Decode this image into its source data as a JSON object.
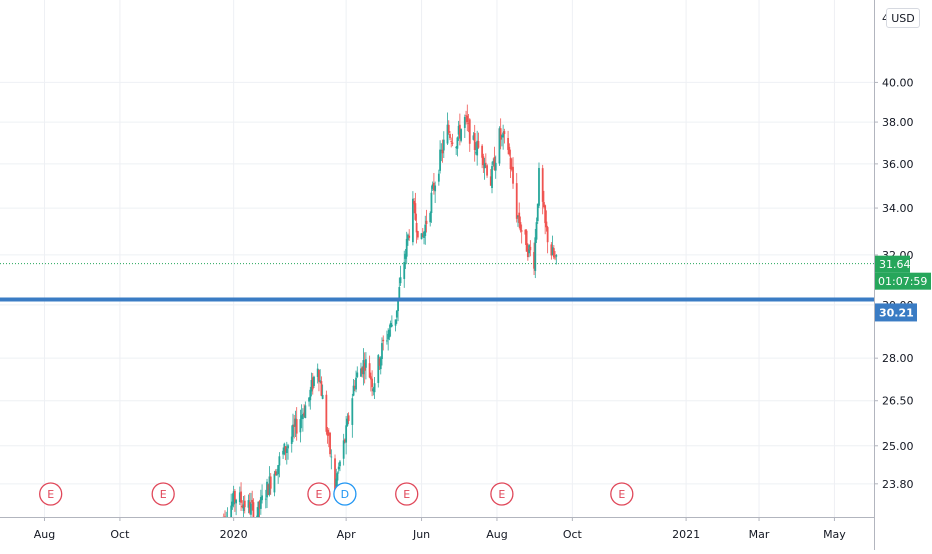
{
  "header": {
    "currency_label": "USD"
  },
  "colors": {
    "up": "#26a69a",
    "down": "#ef5350",
    "up_light": "#9ed8cf",
    "down_light": "#f3a9ad",
    "support_line": "#3a7cc4",
    "last_price_badge": "#26a65b",
    "earnings_marker": "#e0485a",
    "dividend_marker": "#2196f3",
    "grid": "#eef0f4",
    "axis_text": "#131722"
  },
  "chart_data": {
    "type": "candlestick",
    "y_axis": {
      "ticks": [
        23.8,
        25.0,
        26.5,
        28.0,
        30.0,
        32.0,
        34.0,
        36.0,
        38.0,
        40.0
      ],
      "tick_labels": [
        "23.80",
        "25.00",
        "26.50",
        "28.00",
        "30.00",
        "32.00",
        "34.00",
        "36.00",
        "38.00",
        "40.00"
      ],
      "top_partial_label": "4",
      "scale": "log",
      "ylim": [
        22.8,
        44.5
      ]
    },
    "x_axis": {
      "tick_labels": [
        "Aug",
        "Oct",
        "2020",
        "Apr",
        "Jun",
        "Aug",
        "Oct",
        "2021",
        "Mar",
        "May"
      ],
      "tick_dates": [
        "2019-08-01",
        "2019-10-01",
        "2020-01-01",
        "2020-04-01",
        "2020-06-01",
        "2020-08-01",
        "2020-10-01",
        "2021-01-01",
        "2021-03-01",
        "2021-05-01"
      ],
      "xlim": [
        "2019-06-26",
        "2021-06-02"
      ]
    },
    "grid": true,
    "price_trend": [
      {
        "date": "2019-12-20",
        "price": 22.6
      },
      {
        "date": "2020-01-03",
        "price": 23.4
      },
      {
        "date": "2020-01-20",
        "price": 22.9
      },
      {
        "date": "2020-02-03",
        "price": 24.2
      },
      {
        "date": "2020-02-17",
        "price": 25.3
      },
      {
        "date": "2020-03-02",
        "price": 26.6
      },
      {
        "date": "2020-03-09",
        "price": 27.8
      },
      {
        "date": "2020-03-16",
        "price": 25.6
      },
      {
        "date": "2020-03-23",
        "price": 23.7
      },
      {
        "date": "2020-04-01",
        "price": 25.4
      },
      {
        "date": "2020-04-08",
        "price": 27.2
      },
      {
        "date": "2020-04-16",
        "price": 27.9
      },
      {
        "date": "2020-04-23",
        "price": 27.1
      },
      {
        "date": "2020-05-01",
        "price": 28.5
      },
      {
        "date": "2020-05-11",
        "price": 29.6
      },
      {
        "date": "2020-05-18",
        "price": 31.8
      },
      {
        "date": "2020-05-25",
        "price": 34.0
      },
      {
        "date": "2020-06-01",
        "price": 32.5
      },
      {
        "date": "2020-06-08",
        "price": 34.2
      },
      {
        "date": "2020-06-15",
        "price": 36.0
      },
      {
        "date": "2020-06-22",
        "price": 37.6
      },
      {
        "date": "2020-06-29",
        "price": 37.1
      },
      {
        "date": "2020-07-06",
        "price": 38.1
      },
      {
        "date": "2020-07-13",
        "price": 36.9
      },
      {
        "date": "2020-07-20",
        "price": 36.6
      },
      {
        "date": "2020-07-27",
        "price": 35.2
      },
      {
        "date": "2020-08-03",
        "price": 37.3
      },
      {
        "date": "2020-08-10",
        "price": 36.8
      },
      {
        "date": "2020-08-17",
        "price": 33.8
      },
      {
        "date": "2020-08-24",
        "price": 32.5
      },
      {
        "date": "2020-08-31",
        "price": 31.8
      },
      {
        "date": "2020-09-04",
        "price": 35.4
      },
      {
        "date": "2020-09-09",
        "price": 33.2
      },
      {
        "date": "2020-09-14",
        "price": 32.1
      },
      {
        "date": "2020-09-18",
        "price": 31.64
      }
    ],
    "support_line": {
      "value": 30.21,
      "label": "30.21"
    },
    "last_price": {
      "value": 31.64,
      "label": "31.64",
      "countdown": "01:07:59"
    },
    "events": [
      {
        "type": "E",
        "date": "2019-08-06"
      },
      {
        "type": "E",
        "date": "2019-11-05"
      },
      {
        "type": "E",
        "date": "2020-03-10"
      },
      {
        "type": "D",
        "date": "2020-03-31"
      },
      {
        "type": "E",
        "date": "2020-05-20"
      },
      {
        "type": "E",
        "date": "2020-08-05"
      },
      {
        "type": "E",
        "date": "2020-11-10"
      }
    ]
  }
}
